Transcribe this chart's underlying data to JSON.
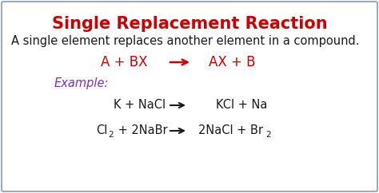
{
  "title": "Single Replacement Reaction",
  "title_color": "#cc0000",
  "title_fontsize": 15,
  "subtitle": "A single element replaces another element in a compound.",
  "subtitle_color": "#1a1a1a",
  "subtitle_fontsize": 10.5,
  "general_left": "A + BX",
  "general_right": "AX + B",
  "general_color": "#cc0000",
  "general_fontsize": 12,
  "example_label": "Example:",
  "example_color": "#7b2fbe",
  "example_fontsize": 10.5,
  "eq1_left": "K + NaCl",
  "eq1_right": "KCl + Na",
  "eq_color": "#1a1a1a",
  "eq_fontsize": 10.5,
  "arrow_color": "#1a1a1a",
  "bg_color": "#ffffff",
  "border_color": "#99aacc"
}
